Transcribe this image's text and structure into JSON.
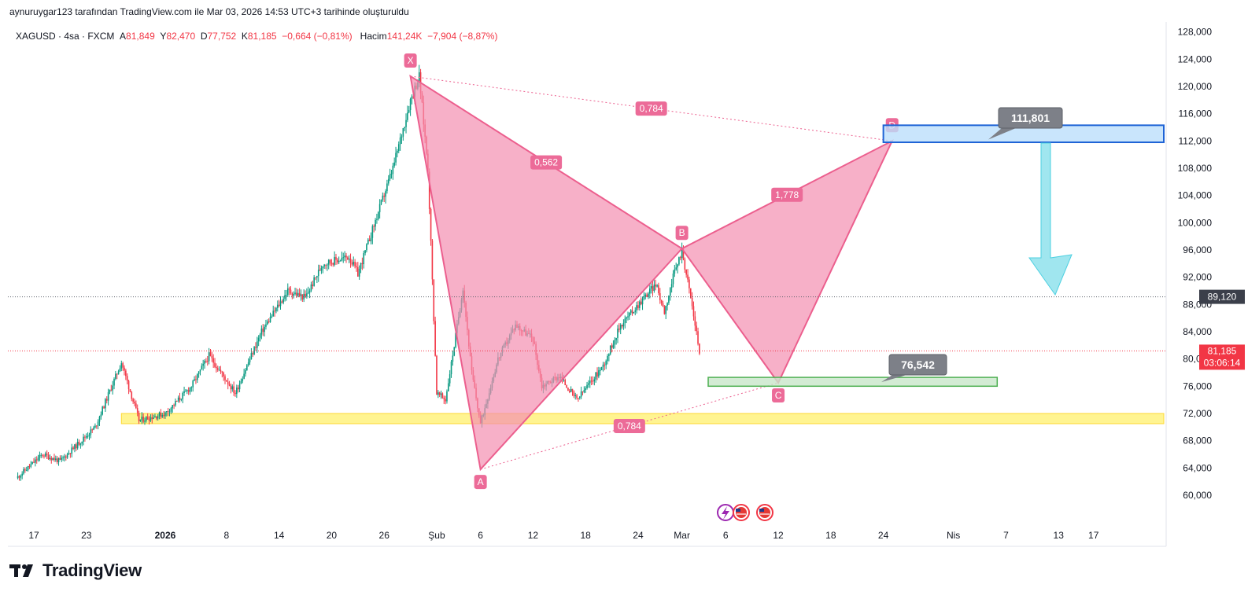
{
  "page": {
    "caption": "aynuruygar123 tarafından TradingView.com ile Mar 03, 2026 14:53 UTC+3 tarihinde oluşturuldu",
    "brand": "TradingView"
  },
  "legend": {
    "symbol": "XAGUSD · 4sa · FXCM",
    "a_label": "A",
    "a_value": "81,849",
    "y_label": "Y",
    "y_value": "82,470",
    "d_label": "D",
    "d_value": "77,752",
    "k_label": "K",
    "k_value": "81,185",
    "change": "−0,664 (−0,81%)",
    "volume_label": "Hacim",
    "volume_value": "141,24K",
    "volume_change": "−7,904 (−8,87%)"
  },
  "colors": {
    "pattern_fill": "#f48fb1",
    "pattern_line": "#ec5f8e",
    "up_candle": "#089981",
    "down_candle": "#f23645",
    "support_zone": "#fff176",
    "target_zone_green": "#c8e6c9",
    "target_zone_blue": "#bbdefb",
    "arrow": "#80deea",
    "price_tag_dark": "#3b3f4a",
    "price_tag_red": "#f23645"
  },
  "chart_data": {
    "type": "candlestick",
    "symbol": "XAGUSD",
    "timeframe": "4sa",
    "ylim": [
      57000,
      130000
    ],
    "y_ticks": [
      60000,
      64000,
      68000,
      72000,
      76000,
      80000,
      84000,
      88000,
      92000,
      96000,
      100000,
      104000,
      108000,
      112000,
      116000,
      120000,
      124000,
      128000
    ],
    "y_tick_labels": [
      "60,000",
      "64,000",
      "68,000",
      "72,000",
      "76,000",
      "80,000",
      "84,000",
      "88,000",
      "92,000",
      "96,000",
      "100,000",
      "104,000",
      "108,000",
      "112,000",
      "116,000",
      "120,000",
      "124,000",
      "128,000"
    ],
    "x_ticks": [
      {
        "date": "2025-12-17",
        "label": "17"
      },
      {
        "date": "2025-12-23",
        "label": "23"
      },
      {
        "date": "2026-01-01",
        "label": "2026",
        "bold": true
      },
      {
        "date": "2026-01-08",
        "label": "8"
      },
      {
        "date": "2026-01-14",
        "label": "14"
      },
      {
        "date": "2026-01-20",
        "label": "20"
      },
      {
        "date": "2026-01-26",
        "label": "26"
      },
      {
        "date": "2026-02-01",
        "label": "Şub"
      },
      {
        "date": "2026-02-06",
        "label": "6"
      },
      {
        "date": "2026-02-12",
        "label": "12"
      },
      {
        "date": "2026-02-18",
        "label": "18"
      },
      {
        "date": "2026-02-24",
        "label": "24"
      },
      {
        "date": "2026-03-01",
        "label": "Mar"
      },
      {
        "date": "2026-03-06",
        "label": "6"
      },
      {
        "date": "2026-03-12",
        "label": "12"
      },
      {
        "date": "2026-03-18",
        "label": "18"
      },
      {
        "date": "2026-03-24",
        "label": "24"
      },
      {
        "date": "2026-04-01",
        "label": "Nis"
      },
      {
        "date": "2026-04-07",
        "label": "7"
      },
      {
        "date": "2026-04-13",
        "label": "13"
      },
      {
        "date": "2026-04-17",
        "label": "17"
      }
    ],
    "price_path": [
      [
        "2025-12-15",
        62500
      ],
      [
        "2025-12-18",
        66000
      ],
      [
        "2025-12-20",
        65000
      ],
      [
        "2025-12-24",
        70000
      ],
      [
        "2025-12-27",
        79500
      ],
      [
        "2025-12-29",
        71000
      ],
      [
        "2026-01-01",
        72000
      ],
      [
        "2026-01-04",
        76000
      ],
      [
        "2026-01-06",
        80500
      ],
      [
        "2026-01-09",
        75000
      ],
      [
        "2026-01-12",
        84000
      ],
      [
        "2026-01-15",
        90000
      ],
      [
        "2026-01-17",
        89000
      ],
      [
        "2026-01-19",
        94000
      ],
      [
        "2026-01-22",
        95000
      ],
      [
        "2026-01-23",
        92500
      ],
      [
        "2026-01-27",
        108000
      ],
      [
        "2026-01-29",
        118000
      ],
      [
        "2026-01-30",
        121500
      ],
      [
        "2026-01-31",
        108000
      ],
      [
        "2026-02-01",
        75000
      ],
      [
        "2026-02-02",
        74000
      ],
      [
        "2026-02-03",
        82000
      ],
      [
        "2026-02-04",
        90500
      ],
      [
        "2026-02-05",
        78000
      ],
      [
        "2026-02-06",
        70500
      ],
      [
        "2026-02-08",
        80000
      ],
      [
        "2026-02-10",
        85000
      ],
      [
        "2026-02-12",
        83000
      ],
      [
        "2026-02-13",
        76000
      ],
      [
        "2026-02-15",
        77500
      ],
      [
        "2026-02-17",
        74000
      ],
      [
        "2026-02-20",
        79000
      ],
      [
        "2026-02-22",
        85000
      ],
      [
        "2026-02-24",
        88000
      ],
      [
        "2026-02-26",
        91000
      ],
      [
        "2026-02-27",
        87000
      ],
      [
        "2026-02-28",
        92000
      ],
      [
        "2026-03-01",
        96000
      ],
      [
        "2026-03-02",
        89000
      ],
      [
        "2026-03-03",
        81185
      ]
    ],
    "harmonic_pattern": {
      "points": [
        {
          "label": "X",
          "date": "2026-01-29",
          "price": 121500
        },
        {
          "label": "A",
          "date": "2026-02-06",
          "price": 63800
        },
        {
          "label": "B",
          "date": "2026-03-01",
          "price": 96200
        },
        {
          "label": "C",
          "date": "2026-03-12",
          "price": 76500
        },
        {
          "label": "D",
          "date": "2026-03-25",
          "price": 112000
        }
      ],
      "ratios": [
        {
          "value": "0,784",
          "from": "X",
          "to": "D"
        },
        {
          "value": "0,562",
          "from": "X",
          "to": "B"
        },
        {
          "value": "1,778",
          "from": "B",
          "to": "D"
        },
        {
          "value": "0,784",
          "from": "A",
          "to": "C"
        }
      ]
    },
    "zones": [
      {
        "name": "support",
        "from_date": "2025-12-27",
        "to_date": "2026-04-17",
        "low": 70500,
        "high": 72000
      },
      {
        "name": "C target",
        "from_date": "2026-03-04",
        "to_date": "2026-04-06",
        "low": 76000,
        "high": 77300
      },
      {
        "name": "D target",
        "from_date": "2026-03-24",
        "to_date": "2026-04-17",
        "low": 111800,
        "high": 114300
      }
    ],
    "callouts": [
      {
        "label": "111,801",
        "price": 111801
      },
      {
        "label": "76,542",
        "price": 76542
      }
    ],
    "price_levels": [
      {
        "label": "89,120",
        "price": 89120,
        "style": "dark"
      },
      {
        "label": "81,185",
        "price": 81185,
        "style": "red",
        "countdown": "03:06:14"
      }
    ]
  }
}
